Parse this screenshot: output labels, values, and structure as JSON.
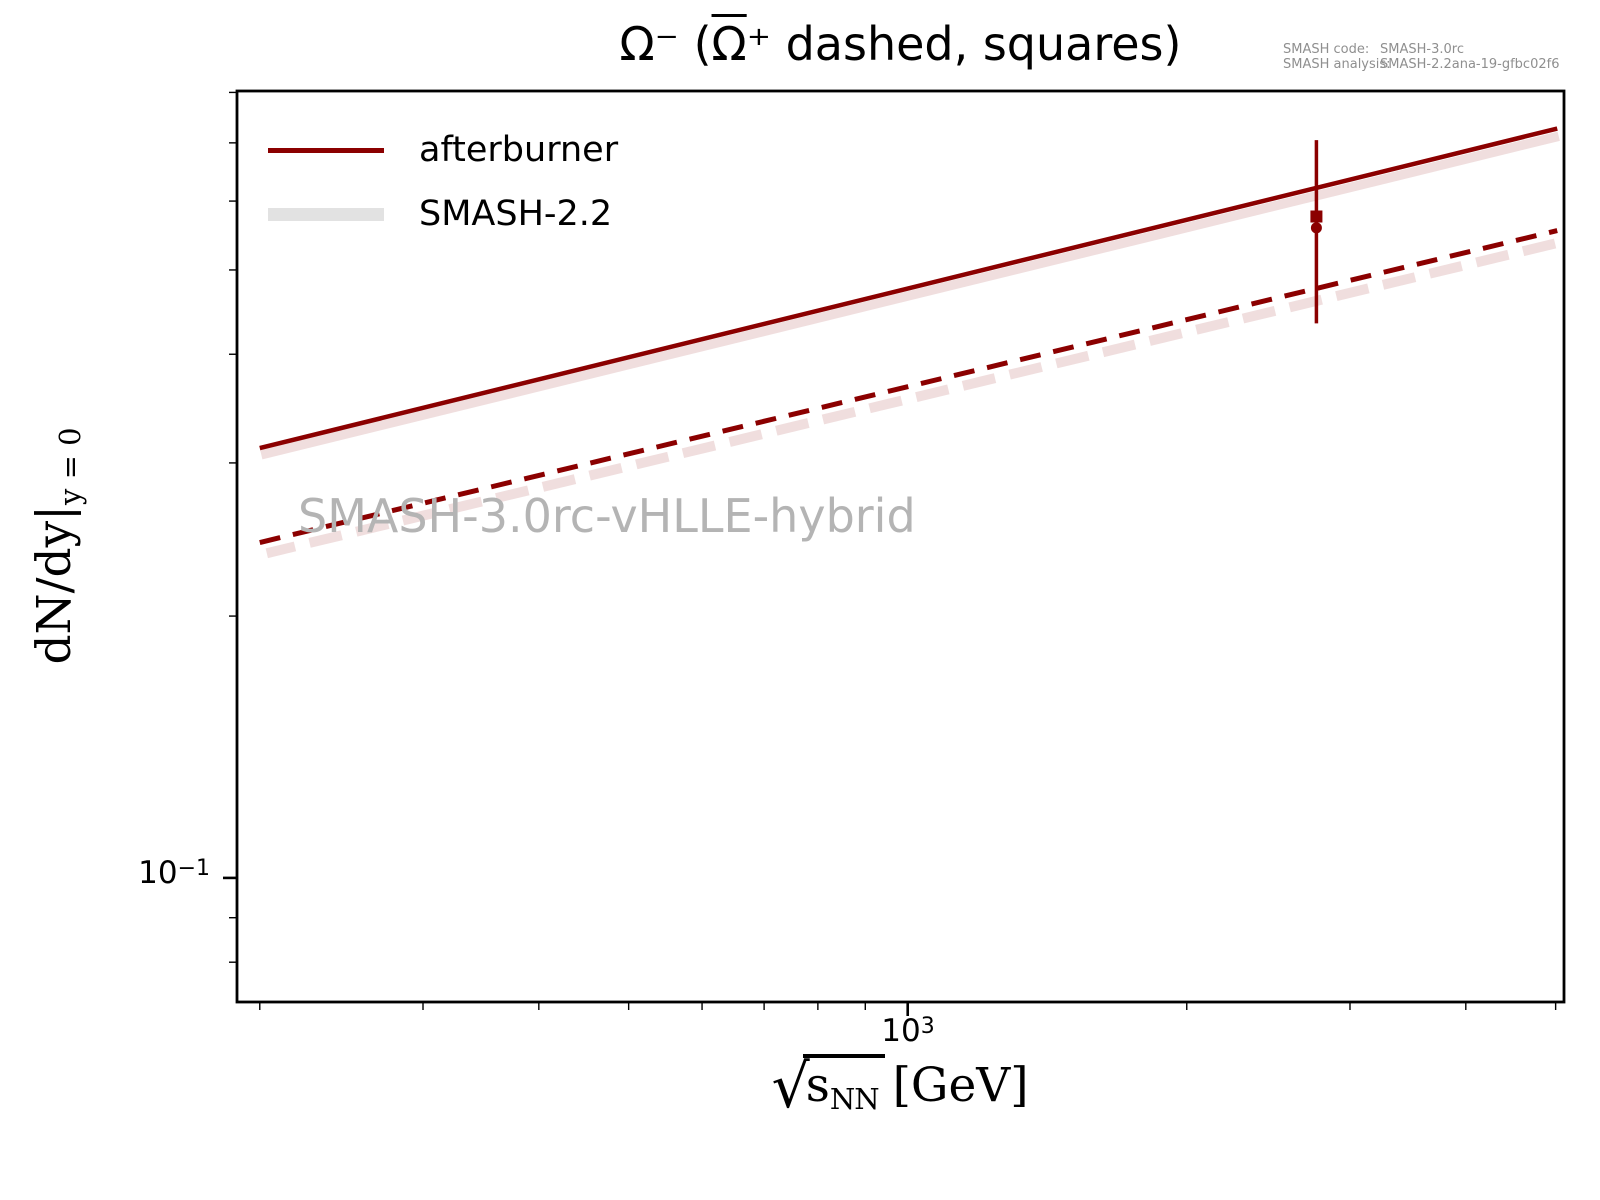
{
  "figure": {
    "title": {
      "prefix": "Ω⁻ (",
      "barred": "Ω",
      "suffix": "⁺ dashed, squares)"
    },
    "code_info": {
      "line1_label": "SMASH code:",
      "line1_value": "SMASH-3.0rc",
      "line2_label": "SMASH analysis:",
      "line2_value": "SMASH-2.2ana-19-gfbc02f6"
    },
    "watermark": "SMASH-3.0rc-vHLLE-hybrid"
  },
  "legend": {
    "items": [
      {
        "label": "afterburner",
        "swatch_color": "#8b0000",
        "swatch_type": "line"
      },
      {
        "label": "SMASH-2.2",
        "swatch_color": "#e2e2e2",
        "swatch_type": "band"
      }
    ]
  },
  "axes": {
    "x_label": {
      "radical_symbol": "√",
      "radicand": "s",
      "radicand_sub": "NN",
      "unit": "[GeV]"
    },
    "y_label": {
      "main": "dN/dy|",
      "sub": "y = 0"
    },
    "x_tick_label": {
      "base": "10",
      "exp": "3"
    },
    "y_tick_label": {
      "base": "10",
      "exp": "−1"
    }
  },
  "chart_data": {
    "type": "line",
    "title": "Ω⁻ (anti-Ω⁺ dashed, squares)",
    "xlabel": "sqrt(s_NN) [GeV]",
    "ylabel": "dN/dy at y=0",
    "x_scale": "log",
    "y_scale": "log",
    "xlim": [
      189,
      5105
    ],
    "ylim": [
      0.072,
      0.803
    ],
    "grid": false,
    "legend_position": "upper left",
    "x_ticks": {
      "major": [
        1000
      ],
      "minor": [
        200,
        300,
        400,
        500,
        600,
        700,
        800,
        900,
        2000,
        3000,
        4000,
        5000
      ]
    },
    "y_ticks": {
      "major": [
        0.1
      ],
      "minor": [
        0.8,
        0.7,
        0.6,
        0.5,
        0.4,
        0.3,
        0.2,
        0.09,
        0.08
      ]
    },
    "series": [
      {
        "name": "SMASH-2.2 Omega-minus",
        "legend": "SMASH-2.2",
        "style": "band-solid",
        "color": "rgba(139,0,0,0.13)",
        "x": [
          200,
          5020
        ],
        "y": [
          0.309,
          0.718
        ]
      },
      {
        "name": "SMASH-2.2 anti-Omega-plus",
        "legend": "SMASH-2.2",
        "style": "band-dashed",
        "color": "rgba(139,0,0,0.13)",
        "x": [
          200,
          5020
        ],
        "y": [
          0.24,
          0.548
        ]
      },
      {
        "name": "afterburner Omega-minus",
        "legend": "afterburner",
        "style": "solid",
        "color": "#8b0000",
        "x": [
          200,
          5020
        ],
        "y": [
          0.312,
          0.727
        ]
      },
      {
        "name": "afterburner anti-Omega-plus",
        "legend": "afterburner",
        "style": "dashed",
        "color": "#8b0000",
        "x": [
          200,
          5020
        ],
        "y": [
          0.243,
          0.555
        ]
      }
    ],
    "data_points": [
      {
        "name": "anti-Omega-plus measurement",
        "marker": "square",
        "color": "#8b0000",
        "x": 2760,
        "y": 0.576,
        "y_err": [
          0.434,
          0.705
        ]
      },
      {
        "name": "Omega-minus measurement",
        "marker": "circle",
        "color": "#8b0000",
        "x": 2760,
        "y": 0.559,
        "y_err": [
          0.434,
          0.705
        ]
      }
    ]
  }
}
